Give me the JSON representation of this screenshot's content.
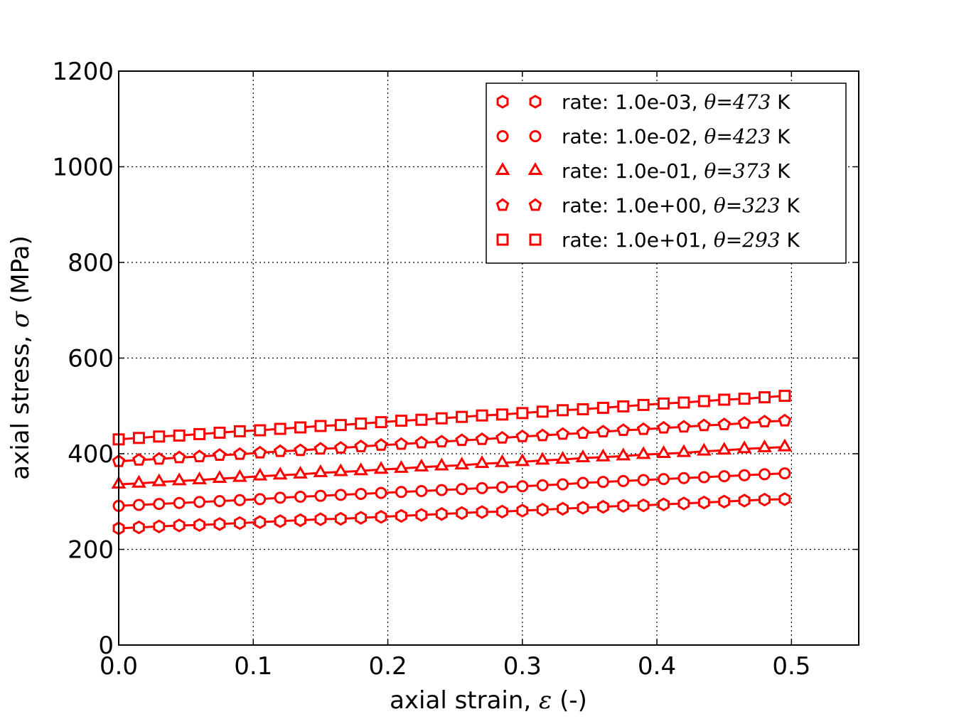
{
  "chart_data": {
    "type": "line",
    "xlabel": {
      "text": "axial strain, ",
      "symbol": "ε",
      "unit": " (-)"
    },
    "ylabel": {
      "text": "axial stress, ",
      "symbol": "σ",
      "unit": " (MPa)"
    },
    "xlim": [
      0,
      0.55
    ],
    "ylim": [
      0,
      1200
    ],
    "xticks": [
      "0.0",
      "0.1",
      "0.2",
      "0.3",
      "0.4",
      "0.5"
    ],
    "xtick_values": [
      0,
      0.1,
      0.2,
      0.3,
      0.4,
      0.5
    ],
    "yticks": [
      "0",
      "200",
      "400",
      "600",
      "800",
      "1000",
      "1200"
    ],
    "ytick_values": [
      0,
      200,
      400,
      600,
      800,
      1000,
      1200
    ],
    "grid": true,
    "legend_position": "top-right",
    "color": "#ff0000",
    "x": [
      0,
      0.015,
      0.03,
      0.045,
      0.06,
      0.075,
      0.09,
      0.105,
      0.12,
      0.135,
      0.15,
      0.165,
      0.18,
      0.195,
      0.21,
      0.225,
      0.24,
      0.255,
      0.27,
      0.285,
      0.3,
      0.315,
      0.33,
      0.345,
      0.36,
      0.375,
      0.39,
      0.405,
      0.42,
      0.435,
      0.45,
      0.465,
      0.48,
      0.495
    ],
    "series": [
      {
        "name": "rate: 1.0e-03, θ=473 K",
        "rate": "rate: 1.0e-03, ",
        "theta": "θ=473",
        "unit": " K",
        "marker": "hexagon",
        "values": [
          244,
          246,
          248,
          250,
          251,
          253,
          255,
          257,
          259,
          261,
          263,
          264,
          266,
          268,
          270,
          272,
          274,
          276,
          278,
          279,
          281,
          283,
          285,
          287,
          289,
          291,
          292,
          294,
          296,
          298,
          300,
          302,
          304,
          305
        ]
      },
      {
        "name": "rate: 1.0e-02, θ=423 K",
        "rate": "rate: 1.0e-02, ",
        "theta": "θ=423",
        "unit": " K",
        "marker": "circle",
        "values": [
          291,
          293,
          295,
          297,
          299,
          301,
          303,
          305,
          308,
          310,
          312,
          314,
          316,
          318,
          320,
          322,
          324,
          326,
          328,
          330,
          332,
          334,
          336,
          339,
          341,
          343,
          345,
          347,
          349,
          351,
          353,
          355,
          357,
          359
        ]
      },
      {
        "name": "rate: 1.0e-01, θ=373 K",
        "rate": "rate: 1.0e-01, ",
        "theta": "θ=373",
        "unit": " K",
        "marker": "triangle",
        "values": [
          336,
          338,
          341,
          343,
          345,
          348,
          350,
          353,
          355,
          357,
          360,
          362,
          364,
          367,
          369,
          372,
          374,
          376,
          379,
          381,
          383,
          386,
          388,
          391,
          393,
          395,
          398,
          400,
          402,
          405,
          407,
          410,
          412,
          414
        ]
      },
      {
        "name": "rate: 1.0e+00, θ=323 K",
        "rate": "rate: 1.0e+00, ",
        "theta": "θ=323",
        "unit": " K",
        "marker": "pentagon",
        "values": [
          384,
          387,
          389,
          392,
          394,
          397,
          399,
          402,
          405,
          407,
          410,
          412,
          415,
          418,
          420,
          423,
          425,
          428,
          430,
          433,
          436,
          438,
          441,
          443,
          446,
          449,
          451,
          454,
          456,
          459,
          461,
          464,
          467,
          469
        ]
      },
      {
        "name": "rate: 1.0e+01, θ=293 K",
        "rate": "rate: 1.0e+01, ",
        "theta": "θ=293",
        "unit": " K",
        "marker": "square",
        "values": [
          430,
          433,
          436,
          438,
          441,
          444,
          447,
          449,
          452,
          455,
          458,
          460,
          463,
          466,
          469,
          471,
          474,
          477,
          480,
          482,
          485,
          488,
          491,
          493,
          496,
          499,
          502,
          505,
          507,
          510,
          513,
          515,
          518,
          521
        ]
      }
    ]
  }
}
